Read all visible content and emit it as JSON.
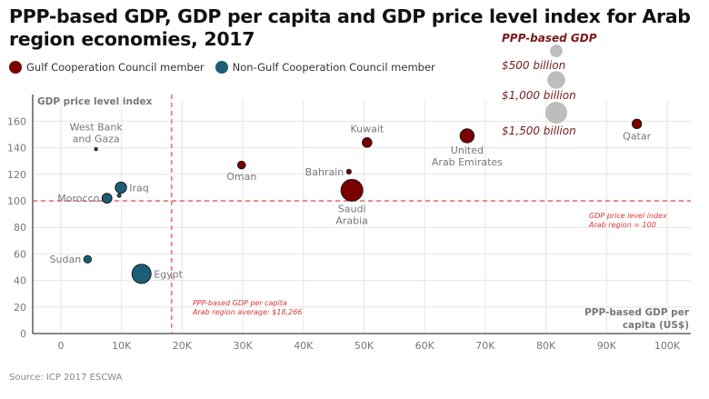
{
  "chart_data": {
    "type": "scatter",
    "title": "PPP-based GDP, GDP per capita and GDP price level index for Arab region economies, 2017",
    "xlabel": "PPP-based GDP per capita (US$)",
    "ylabel": "GDP price level index",
    "xlim": [
      -5000,
      104000
    ],
    "ylim": [
      0,
      172
    ],
    "x_ticks": [
      0,
      10000,
      20000,
      30000,
      40000,
      50000,
      60000,
      70000,
      80000,
      90000,
      100000
    ],
    "x_tick_labels": [
      "0",
      "10K",
      "20K",
      "30K",
      "40K",
      "50K",
      "60K",
      "70K",
      "80K",
      "90K",
      "100K"
    ],
    "y_ticks": [
      0,
      20,
      40,
      60,
      80,
      100,
      120,
      140,
      160
    ],
    "y_tick_labels": [
      "0",
      "20",
      "40",
      "60",
      "80",
      "100",
      "120",
      "140",
      "160"
    ],
    "grid": true,
    "legend_position": "top-left",
    "series": [
      {
        "name": "Gulf Cooperation Council member",
        "color": "#7a0000",
        "points": [
          {
            "label": "Qatar",
            "x": 95000,
            "y": 158,
            "gdp_billion": 280,
            "label_pos": "below"
          },
          {
            "label": "United Arab Emirates",
            "label_lines": [
              "United",
              "Arab Emirates"
            ],
            "x": 67000,
            "y": 149,
            "gdp_billion": 620,
            "label_pos": "below"
          },
          {
            "label": "Kuwait",
            "x": 50500,
            "y": 144,
            "gdp_billion": 290,
            "label_pos": "above"
          },
          {
            "label": "Oman",
            "x": 29800,
            "y": 127,
            "gdp_billion": 190,
            "label_pos": "below"
          },
          {
            "label": "Bahrain",
            "x": 47500,
            "y": 122,
            "gdp_billion": 70,
            "label_pos": "left"
          },
          {
            "label": "Saudi Arabia",
            "label_lines": [
              "Saudi",
              "Arabia"
            ],
            "x": 48000,
            "y": 108,
            "gdp_billion": 1500,
            "label_pos": "below"
          }
        ]
      },
      {
        "name": "Non-Gulf Cooperation Council member",
        "color": "#1a5e78",
        "points": [
          {
            "label": "West Bank and Gaza",
            "label_lines": [
              "West Bank",
              "and Gaza"
            ],
            "x": 5800,
            "y": 139,
            "gdp_billion": 30,
            "label_pos": "above"
          },
          {
            "label": "Iraq",
            "x": 9900,
            "y": 110,
            "gdp_billion": 400,
            "label_pos": "right"
          },
          {
            "label": "",
            "x": 9600,
            "y": 104,
            "gdp_billion": 40,
            "label_pos": "none"
          },
          {
            "label": "Morocco",
            "x": 7600,
            "y": 102,
            "gdp_billion": 300,
            "label_pos": "left"
          },
          {
            "label": "Sudan",
            "x": 4400,
            "y": 56,
            "gdp_billion": 180,
            "label_pos": "left"
          },
          {
            "label": "Egypt",
            "x": 13300,
            "y": 45,
            "gdp_billion": 1150,
            "label_pos": "right"
          }
        ]
      }
    ],
    "reference_lines": [
      {
        "orientation": "vertical",
        "value": 18266,
        "color": "#e8474b",
        "note_lines": [
          "PPP-based GDP per capita",
          "Arab region average: $18,266"
        ]
      },
      {
        "orientation": "horizontal",
        "value": 100,
        "color": "#e8474b",
        "note_lines": [
          "GDP price level index",
          "Arab region = 100"
        ]
      }
    ],
    "size_legend": {
      "title": "PPP-based GDP",
      "color": "#bdbdbd",
      "entries": [
        {
          "value_billion": 500,
          "label": "$500 billion"
        },
        {
          "value_billion": 1000,
          "label": "$1,000 billion"
        },
        {
          "value_billion": 1500,
          "label": "$1,500 billion"
        }
      ]
    }
  },
  "title": "PPP-based GDP, GDP per capita and GDP price level index for Arab region economies, 2017",
  "legend": {
    "gcc_label": "Gulf Cooperation Council member",
    "gcc_color": "#7a0000",
    "non_gcc_label": "Non-Gulf Cooperation Council member",
    "non_gcc_color": "#1a5e78"
  },
  "source": "Source: ICP 2017 ESCWA"
}
